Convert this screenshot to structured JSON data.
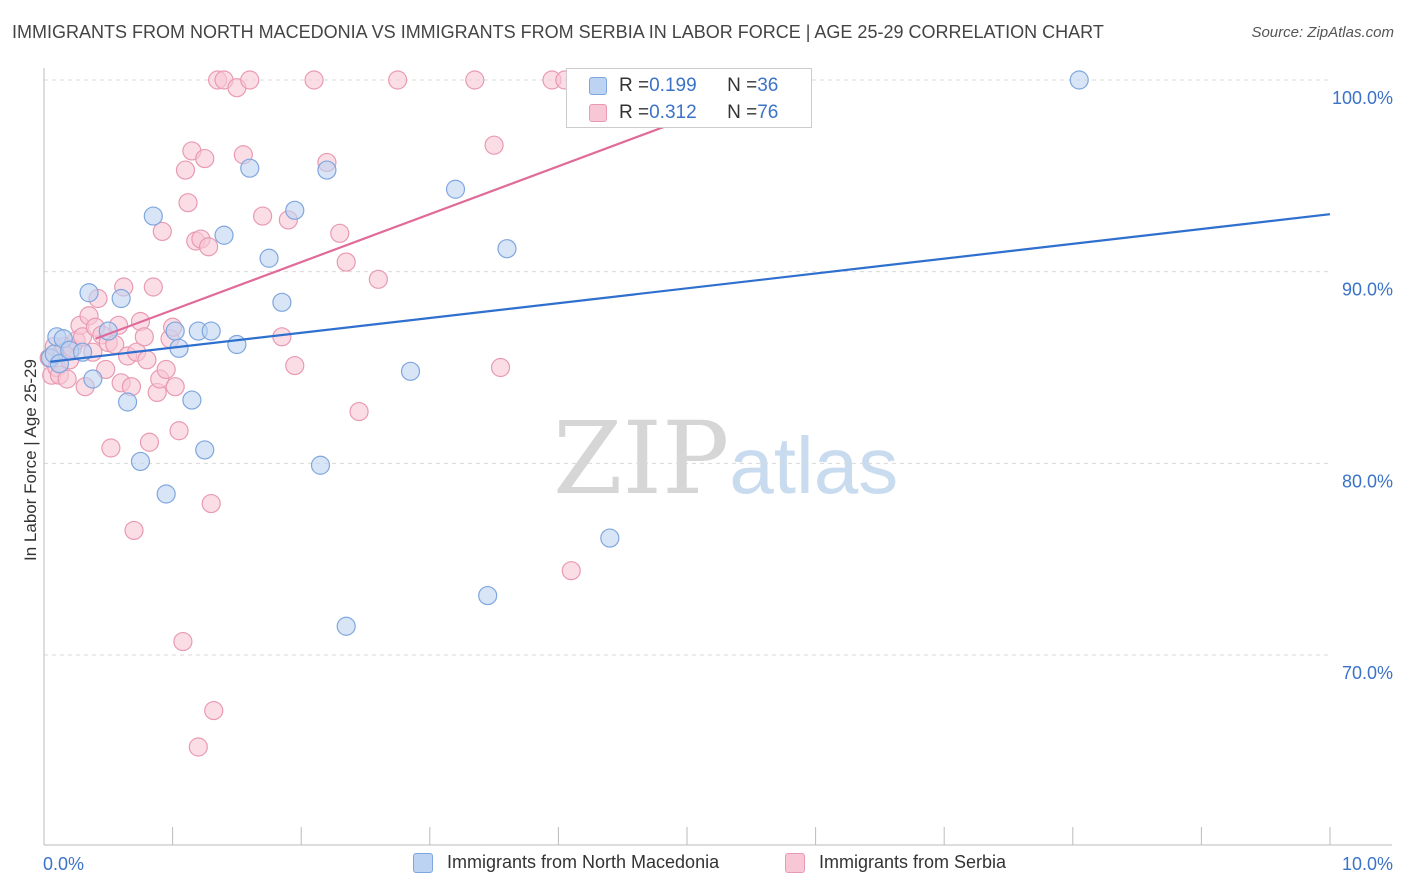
{
  "title": "IMMIGRANTS FROM NORTH MACEDONIA VS IMMIGRANTS FROM SERBIA IN LABOR FORCE | AGE 25-29 CORRELATION CHART",
  "source": "Source: ZipAtlas.com",
  "watermark": {
    "zip": "ZIP",
    "atlas": "atlas"
  },
  "legend_top": {
    "rows": [
      {
        "r_label": "R = ",
        "r_value": "0.199",
        "n_label": "N = ",
        "n_value": "36"
      },
      {
        "r_label": "R = ",
        "r_value": "0.312",
        "n_label": "N = ",
        "n_value": "76"
      }
    ]
  },
  "colors": {
    "blue_fill": "#bcd3f1",
    "blue_stroke": "#7fa6de",
    "blue_line": "#2f6fce",
    "pink_fill": "#f8c7d6",
    "pink_stroke": "#e99ab3",
    "pink_line": "#e06b99",
    "tick_label": "#3b73c8",
    "grid": "#d9d9d9"
  },
  "chart_data": {
    "type": "scatter",
    "title": "IMMIGRANTS FROM NORTH MACEDONIA VS IMMIGRANTS FROM SERBIA IN LABOR FORCE | AGE 25-29 CORRELATION CHART",
    "xlabel": "",
    "ylabel": "In Labor Force | Age 25-29",
    "xlim": [
      0,
      10
    ],
    "ylim": [
      60,
      100
    ],
    "x_tick_labels": [
      {
        "value": 0,
        "label": "0.0%"
      },
      {
        "value": 10,
        "label": "10.0%"
      }
    ],
    "y_tick_labels": [
      {
        "value": 100,
        "label": "100.0%"
      },
      {
        "value": 90,
        "label": "90.0%"
      },
      {
        "value": 80,
        "label": "80.0%"
      },
      {
        "value": 70,
        "label": "70.0%"
      }
    ],
    "series": [
      {
        "name": "Immigrants from North Macedonia",
        "color": "blue",
        "R": 0.199,
        "N": 36,
        "trend": {
          "x": [
            0.05,
            10
          ],
          "y": [
            85.3,
            93.0
          ]
        },
        "points": [
          [
            0.05,
            85.5
          ],
          [
            0.08,
            85.7
          ],
          [
            0.1,
            86.6
          ],
          [
            0.12,
            85.2
          ],
          [
            0.15,
            86.5
          ],
          [
            0.2,
            85.9
          ],
          [
            0.3,
            85.8
          ],
          [
            0.35,
            88.9
          ],
          [
            0.38,
            84.4
          ],
          [
            0.5,
            86.9
          ],
          [
            0.6,
            88.6
          ],
          [
            0.65,
            83.2
          ],
          [
            0.75,
            80.1
          ],
          [
            0.85,
            92.9
          ],
          [
            0.95,
            78.4
          ],
          [
            1.02,
            86.9
          ],
          [
            1.05,
            86.0
          ],
          [
            1.15,
            83.3
          ],
          [
            1.2,
            86.9
          ],
          [
            1.25,
            80.7
          ],
          [
            1.3,
            86.9
          ],
          [
            1.4,
            91.9
          ],
          [
            1.5,
            86.2
          ],
          [
            1.6,
            95.4
          ],
          [
            1.75,
            90.7
          ],
          [
            1.85,
            88.4
          ],
          [
            1.95,
            93.2
          ],
          [
            2.15,
            79.9
          ],
          [
            2.2,
            95.3
          ],
          [
            2.35,
            71.5
          ],
          [
            2.85,
            84.8
          ],
          [
            3.2,
            94.3
          ],
          [
            3.45,
            73.1
          ],
          [
            3.6,
            91.2
          ],
          [
            4.4,
            76.1
          ],
          [
            8.05,
            100.0
          ]
        ]
      },
      {
        "name": "Immigrants from Serbia",
        "color": "pink",
        "R": 0.312,
        "N": 76,
        "trend": {
          "x": [
            0.4,
            5.0
          ],
          "y": [
            86.5,
            98.0
          ]
        },
        "points": [
          [
            0.04,
            85.5
          ],
          [
            0.06,
            84.6
          ],
          [
            0.08,
            86.1
          ],
          [
            0.1,
            85.0
          ],
          [
            0.12,
            84.6
          ],
          [
            0.14,
            85.8
          ],
          [
            0.16,
            86.1
          ],
          [
            0.18,
            84.4
          ],
          [
            0.2,
            85.4
          ],
          [
            0.22,
            86.0
          ],
          [
            0.25,
            86.4
          ],
          [
            0.28,
            87.2
          ],
          [
            0.3,
            86.6
          ],
          [
            0.32,
            84.0
          ],
          [
            0.35,
            87.7
          ],
          [
            0.38,
            85.8
          ],
          [
            0.4,
            87.1
          ],
          [
            0.42,
            88.6
          ],
          [
            0.45,
            86.7
          ],
          [
            0.48,
            84.9
          ],
          [
            0.5,
            86.3
          ],
          [
            0.52,
            80.8
          ],
          [
            0.55,
            86.2
          ],
          [
            0.58,
            87.2
          ],
          [
            0.6,
            84.2
          ],
          [
            0.62,
            89.2
          ],
          [
            0.65,
            85.6
          ],
          [
            0.68,
            84.0
          ],
          [
            0.7,
            76.5
          ],
          [
            0.72,
            85.8
          ],
          [
            0.75,
            87.4
          ],
          [
            0.78,
            86.6
          ],
          [
            0.8,
            85.4
          ],
          [
            0.82,
            81.1
          ],
          [
            0.85,
            89.2
          ],
          [
            0.88,
            83.7
          ],
          [
            0.9,
            84.4
          ],
          [
            0.92,
            92.1
          ],
          [
            0.95,
            84.9
          ],
          [
            0.98,
            86.5
          ],
          [
            1.0,
            87.1
          ],
          [
            1.02,
            84.0
          ],
          [
            1.05,
            81.7
          ],
          [
            1.08,
            70.7
          ],
          [
            1.1,
            95.3
          ],
          [
            1.12,
            93.6
          ],
          [
            1.15,
            96.3
          ],
          [
            1.18,
            91.6
          ],
          [
            1.2,
            65.2
          ],
          [
            1.22,
            91.7
          ],
          [
            1.25,
            95.9
          ],
          [
            1.28,
            91.3
          ],
          [
            1.3,
            77.9
          ],
          [
            1.32,
            67.1
          ],
          [
            1.35,
            100.0
          ],
          [
            1.4,
            100.0
          ],
          [
            1.5,
            99.6
          ],
          [
            1.55,
            96.1
          ],
          [
            1.6,
            100.0
          ],
          [
            1.7,
            92.9
          ],
          [
            1.85,
            86.6
          ],
          [
            1.9,
            92.7
          ],
          [
            1.95,
            85.1
          ],
          [
            2.1,
            100.0
          ],
          [
            2.2,
            95.7
          ],
          [
            2.3,
            92.0
          ],
          [
            2.35,
            90.5
          ],
          [
            2.45,
            82.7
          ],
          [
            2.6,
            89.6
          ],
          [
            2.75,
            100.0
          ],
          [
            3.35,
            100.0
          ],
          [
            3.5,
            96.6
          ],
          [
            3.55,
            85.0
          ],
          [
            3.95,
            100.0
          ],
          [
            4.05,
            100.0
          ],
          [
            4.1,
            74.4
          ]
        ]
      }
    ]
  },
  "legend_bottom": [
    {
      "label": "Immigrants from North Macedonia"
    },
    {
      "label": "Immigrants from Serbia"
    }
  ]
}
